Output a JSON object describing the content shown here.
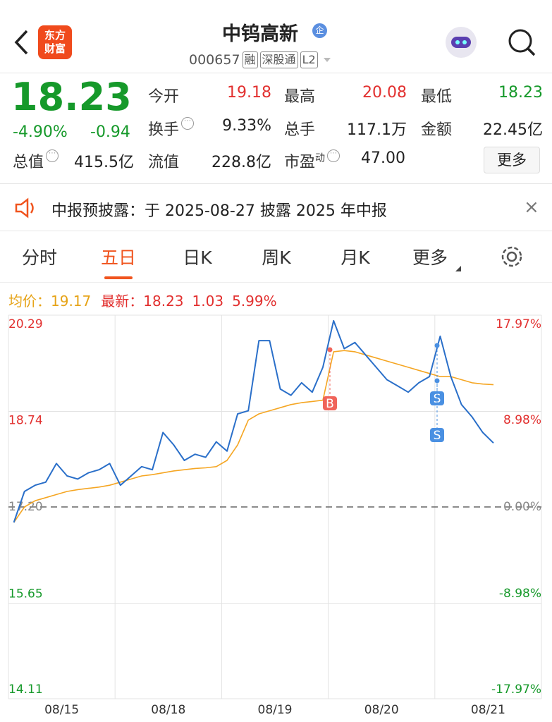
{
  "header": {
    "title": "中钨高新",
    "badge": "企",
    "code": "000657",
    "tags": [
      "融",
      "深股通",
      "L2"
    ],
    "logo": [
      "东方",
      "财富"
    ]
  },
  "quote": {
    "price": "18.23",
    "change_pct": "-4.90%",
    "change": "-0.94",
    "fields": [
      {
        "label": "今开",
        "value": "19.18"
      },
      {
        "label": "最高",
        "value": "20.08"
      },
      {
        "label": "最低",
        "value": "18.23"
      },
      {
        "label": "换手",
        "value": "9.33%"
      },
      {
        "label": "总手",
        "value": "117.1万"
      },
      {
        "label": "金额",
        "value": "22.45亿"
      },
      {
        "label": "总值",
        "value": "415.5亿"
      },
      {
        "label": "流值",
        "value": "228.8亿"
      },
      {
        "label": "市盈",
        "sup": "动",
        "value": "47.00"
      }
    ],
    "more": "更多"
  },
  "notice": {
    "text": "中报预披露：于 2025-08-27 披露 2025 年中报"
  },
  "tabs": [
    "分时",
    "五日",
    "日K",
    "周K",
    "月K",
    "更多"
  ],
  "chart_data": {
    "type": "line",
    "legend": {
      "avg_label": "均价：",
      "avg": "19.17",
      "last_label": "最新：",
      "last": "18.23",
      "change": "1.03",
      "change_pct": "5.99%"
    },
    "x": [
      0.05,
      0.15,
      0.25,
      0.35,
      0.45,
      0.55,
      0.65,
      0.75,
      0.85,
      0.95,
      1.05,
      1.15,
      1.25,
      1.35,
      1.45,
      1.55,
      1.65,
      1.75,
      1.85,
      1.95,
      2.05,
      2.15,
      2.25,
      2.35,
      2.45,
      2.55,
      2.65,
      2.75,
      2.85,
      2.95,
      3.05,
      3.15,
      3.25,
      3.35,
      3.45,
      3.55,
      3.65,
      3.75,
      3.85,
      3.95,
      4.05,
      4.15,
      4.25,
      4.35,
      4.45,
      4.55
    ],
    "series": [
      {
        "name": "最新",
        "color": "#2a6fc9",
        "values": [
          16.95,
          17.45,
          17.55,
          17.6,
          17.9,
          17.7,
          17.65,
          17.75,
          17.8,
          17.9,
          17.55,
          17.7,
          17.85,
          17.8,
          18.4,
          18.2,
          17.95,
          18.05,
          18.0,
          18.25,
          18.1,
          18.7,
          18.75,
          19.88,
          19.88,
          19.1,
          19.0,
          19.2,
          19.05,
          19.45,
          20.2,
          19.75,
          19.85,
          19.65,
          19.45,
          19.25,
          19.15,
          19.05,
          19.2,
          19.3,
          19.95,
          19.3,
          18.85,
          18.65,
          18.4,
          18.23
        ]
      },
      {
        "name": "均价",
        "color": "#f5a623",
        "values": [
          16.95,
          17.2,
          17.3,
          17.35,
          17.4,
          17.45,
          17.48,
          17.5,
          17.52,
          17.55,
          17.6,
          17.65,
          17.7,
          17.72,
          17.75,
          17.78,
          17.8,
          17.82,
          17.83,
          17.85,
          17.95,
          18.2,
          18.6,
          18.7,
          18.75,
          18.8,
          18.85,
          18.88,
          18.9,
          18.92,
          19.7,
          19.72,
          19.7,
          19.65,
          19.6,
          19.55,
          19.5,
          19.45,
          19.4,
          19.35,
          19.3,
          19.3,
          19.25,
          19.2,
          19.18,
          19.17
        ]
      }
    ],
    "xlim": [
      0,
      5
    ],
    "xticks": [
      {
        "value": 0.5,
        "label": "08/15"
      },
      {
        "value": 1.5,
        "label": "08/18"
      },
      {
        "value": 2.5,
        "label": "08/19"
      },
      {
        "value": 3.5,
        "label": "08/20"
      },
      {
        "value": 4.5,
        "label": "08/21"
      }
    ],
    "ylim": [
      14.11,
      20.29
    ],
    "yticks": [
      14.11,
      15.65,
      {
        "value": 17.2,
        "label": "17.20"
      },
      18.74,
      20.29
    ],
    "y2lim": [
      -17.97,
      17.97
    ],
    "y2ticks": [
      {
        "value": -17.97,
        "label": "-17.97%"
      },
      {
        "value": -8.98,
        "label": "-8.98%"
      },
      {
        "value": 0,
        "label": "0.00%"
      },
      {
        "value": 8.98,
        "label": "8.98%"
      },
      {
        "value": 17.97,
        "label": "17.97%"
      }
    ],
    "grid": true,
    "annotations": [
      "B",
      "S",
      "S"
    ]
  }
}
